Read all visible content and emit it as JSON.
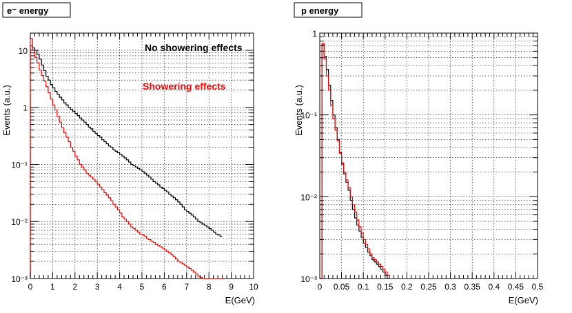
{
  "chart_data": [
    {
      "type": "line",
      "title": "e⁻ energy",
      "xlabel": "E(GeV)",
      "ylabel": "Events (a.u.)",
      "xlim": [
        0,
        10
      ],
      "ylim_log": [
        0.001,
        20
      ],
      "yscale": "log",
      "grid": "both",
      "x_ticks": [
        "0",
        "1",
        "2",
        "3",
        "4",
        "5",
        "6",
        "7",
        "8",
        "9",
        "10"
      ],
      "y_ticks": [
        "10⁻³",
        "10⁻²",
        "10⁻¹",
        "1",
        "10"
      ],
      "annotations": [
        {
          "text": "No showering effects",
          "color": "#000000"
        },
        {
          "text": "Showering effects",
          "color": "#ff0000"
        }
      ],
      "series": [
        {
          "name": "No showering effects",
          "color": "#000000",
          "bin_edges_start": 0,
          "bin_width": 0.1,
          "values": [
            12,
            11,
            10,
            8.5,
            7,
            5.5,
            4.4,
            3.5,
            3.0,
            2.5,
            2.2,
            1.9,
            1.7,
            1.5,
            1.35,
            1.2,
            1.1,
            1.0,
            0.92,
            0.85,
            0.78,
            0.72,
            0.65,
            0.6,
            0.55,
            0.5,
            0.45,
            0.42,
            0.38,
            0.35,
            0.32,
            0.3,
            0.27,
            0.25,
            0.23,
            0.21,
            0.2,
            0.18,
            0.17,
            0.16,
            0.15,
            0.14,
            0.13,
            0.12,
            0.11,
            0.1,
            0.095,
            0.09,
            0.085,
            0.08,
            0.075,
            0.07,
            0.065,
            0.06,
            0.055,
            0.05,
            0.047,
            0.044,
            0.04,
            0.038,
            0.035,
            0.033,
            0.03,
            0.028,
            0.026,
            0.024,
            0.022,
            0.02,
            0.018,
            0.016,
            0.015,
            0.014,
            0.013,
            0.012,
            0.011,
            0.01,
            0.0095,
            0.009,
            0.0085,
            0.008,
            0.0075,
            0.007,
            0.0065,
            0.006,
            0.0058,
            0.0055
          ]
        },
        {
          "name": "Showering effects",
          "color": "#ff0000",
          "bin_edges_start": 0,
          "bin_width": 0.1,
          "values": [
            16,
            10,
            7.5,
            6,
            4.5,
            3.6,
            2.9,
            2.3,
            1.8,
            1.4,
            1.1,
            0.9,
            0.7,
            0.55,
            0.44,
            0.36,
            0.3,
            0.25,
            0.2,
            0.17,
            0.14,
            0.12,
            0.1,
            0.09,
            0.08,
            0.07,
            0.065,
            0.06,
            0.055,
            0.05,
            0.045,
            0.04,
            0.036,
            0.032,
            0.029,
            0.026,
            0.023,
            0.02,
            0.018,
            0.016,
            0.014,
            0.012,
            0.011,
            0.01,
            0.009,
            0.008,
            0.0075,
            0.007,
            0.0065,
            0.006,
            0.0058,
            0.0055,
            0.005,
            0.0048,
            0.0045,
            0.0043,
            0.004,
            0.0038,
            0.0036,
            0.0034,
            0.0032,
            0.003,
            0.0028,
            0.0026,
            0.0024,
            0.0022,
            0.002,
            0.0019,
            0.0018,
            0.0017,
            0.0016,
            0.0015,
            0.0014,
            0.0013,
            0.0012,
            0.0011,
            0.00105,
            0.001,
            0.001,
            0.001,
            0.001,
            0.001,
            0.001,
            0.001,
            0.001,
            0.001
          ]
        }
      ]
    },
    {
      "type": "line",
      "title": "p energy",
      "xlabel": "E(GeV)",
      "ylabel": "Events (a.u.)",
      "xlim": [
        0,
        0.5
      ],
      "ylim_log": [
        0.001,
        1
      ],
      "yscale": "log",
      "grid": "both",
      "x_ticks": [
        "0",
        "0.05",
        "0.1",
        "0.15",
        "0.2",
        "0.25",
        "0.3",
        "0.35",
        "0.4",
        "0.45",
        "0.5"
      ],
      "y_ticks": [
        "10⁻³",
        "10⁻²",
        "10⁻¹",
        "1"
      ],
      "series": [
        {
          "name": "black",
          "color": "#000000",
          "bin_edges_start": 0,
          "bin_width": 0.005,
          "values": [
            0.0,
            0.72,
            0.52,
            0.36,
            0.23,
            0.15,
            0.1,
            0.07,
            0.05,
            0.035,
            0.025,
            0.019,
            0.015,
            0.012,
            0.009,
            0.007,
            0.0055,
            0.0045,
            0.0038,
            0.0032,
            0.0027,
            0.0024,
            0.0021,
            0.0019,
            0.0017,
            0.0016,
            0.0015,
            0.0014,
            0.0013,
            0.0012,
            0.0011,
            0.001
          ]
        },
        {
          "name": "red",
          "color": "#ff0000",
          "bin_edges_start": 0,
          "bin_width": 0.005,
          "values": [
            0.0,
            0.75,
            0.48,
            0.3,
            0.2,
            0.13,
            0.09,
            0.065,
            0.048,
            0.034,
            0.026,
            0.02,
            0.016,
            0.013,
            0.01,
            0.008,
            0.0065,
            0.0052,
            0.0043,
            0.0036,
            0.003,
            0.0026,
            0.0023,
            0.002,
            0.0018,
            0.0017,
            0.0016,
            0.0015,
            0.0014,
            0.0013,
            0.0012,
            0.0011
          ]
        }
      ]
    }
  ]
}
